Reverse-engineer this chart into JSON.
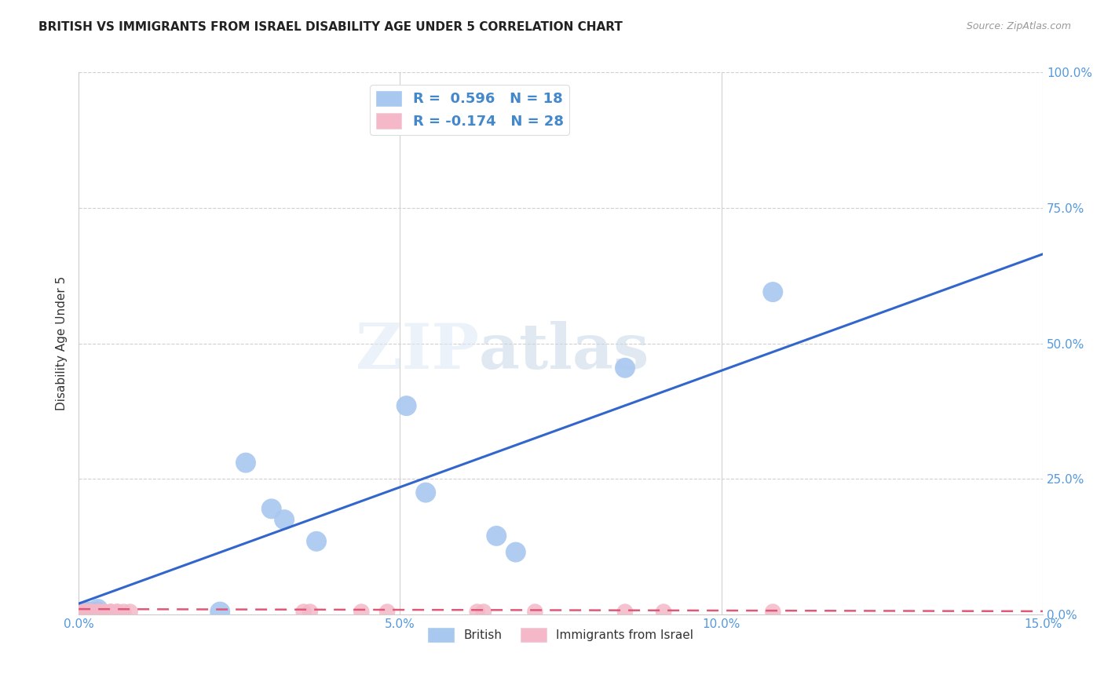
{
  "title": "BRITISH VS IMMIGRANTS FROM ISRAEL DISABILITY AGE UNDER 5 CORRELATION CHART",
  "source": "Source: ZipAtlas.com",
  "ylabel": "Disability Age Under 5",
  "xlim": [
    0.0,
    0.15
  ],
  "ylim": [
    0.0,
    1.0
  ],
  "yticks": [
    0.0,
    0.25,
    0.5,
    0.75,
    1.0
  ],
  "ytick_labels": [
    "0.0%",
    "25.0%",
    "50.0%",
    "75.0%",
    "100.0%"
  ],
  "xticks": [
    0.0,
    0.05,
    0.1,
    0.15
  ],
  "xtick_labels": [
    "0.0%",
    "5.0%",
    "10.0%",
    "15.0%"
  ],
  "british_R": 0.596,
  "british_N": 18,
  "israel_R": -0.174,
  "israel_N": 28,
  "british_color": "#a8c8f0",
  "israel_color": "#f4b8c8",
  "british_line_color": "#3366cc",
  "israel_line_color": "#e05878",
  "british_x": [
    0.0005,
    0.001,
    0.0015,
    0.002,
    0.002,
    0.003,
    0.003,
    0.022,
    0.026,
    0.03,
    0.032,
    0.037,
    0.051,
    0.054,
    0.065,
    0.068,
    0.085,
    0.108
  ],
  "british_y": [
    0.005,
    0.005,
    0.005,
    0.005,
    0.005,
    0.005,
    0.01,
    0.005,
    0.28,
    0.195,
    0.175,
    0.135,
    0.385,
    0.225,
    0.145,
    0.115,
    0.455,
    0.595
  ],
  "israel_x": [
    0.0005,
    0.001,
    0.001,
    0.0015,
    0.002,
    0.002,
    0.002,
    0.003,
    0.003,
    0.003,
    0.004,
    0.004,
    0.005,
    0.005,
    0.006,
    0.006,
    0.007,
    0.008,
    0.035,
    0.036,
    0.044,
    0.048,
    0.062,
    0.063,
    0.071,
    0.085,
    0.091,
    0.108
  ],
  "israel_y": [
    0.005,
    0.005,
    0.005,
    0.005,
    0.005,
    0.005,
    0.005,
    0.005,
    0.005,
    0.005,
    0.005,
    0.005,
    0.005,
    0.005,
    0.005,
    0.005,
    0.005,
    0.005,
    0.005,
    0.005,
    0.005,
    0.005,
    0.005,
    0.005,
    0.005,
    0.005,
    0.005,
    0.005
  ],
  "british_line_x": [
    0.0,
    0.15
  ],
  "british_line_y": [
    0.02,
    0.665
  ],
  "israel_line_x": [
    0.0,
    0.15
  ],
  "israel_line_y": [
    0.01,
    0.006
  ],
  "watermark_zip": "ZIP",
  "watermark_atlas": "atlas",
  "background_color": "#ffffff",
  "grid_color": "#d0d0d0",
  "tick_color": "#5599dd",
  "legend_text_color": "#4488cc",
  "title_color": "#222222",
  "source_color": "#999999",
  "ylabel_color": "#333333"
}
